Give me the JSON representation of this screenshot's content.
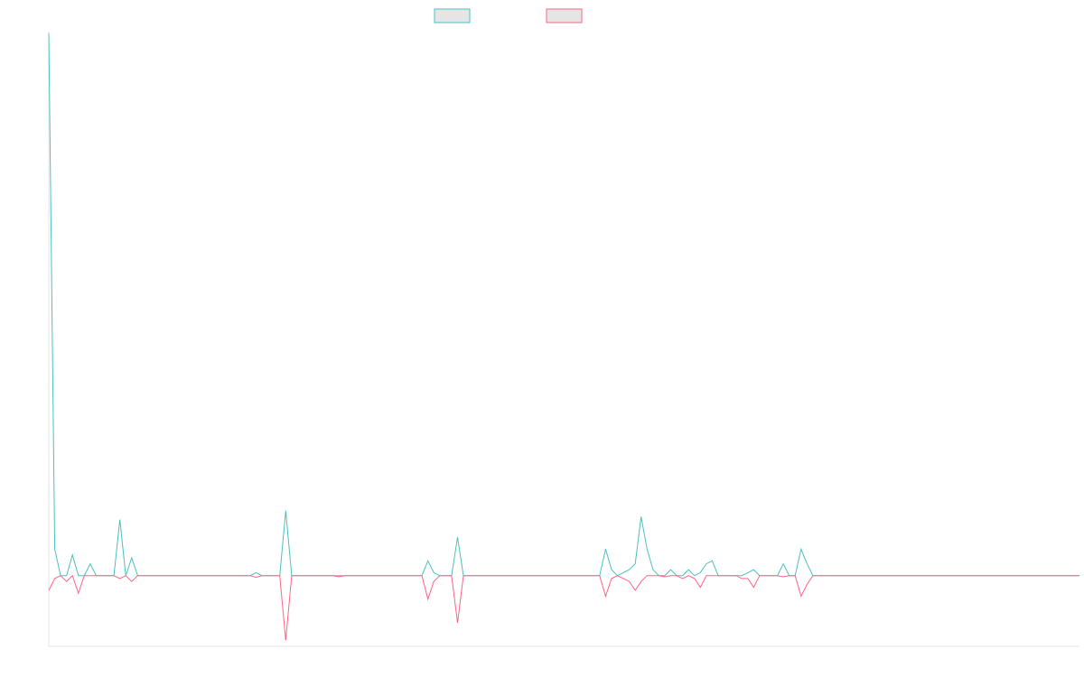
{
  "chart_data": {
    "type": "line",
    "title": "",
    "xlabel": "",
    "ylabel": "",
    "grid": false,
    "legend_position": "top-center",
    "x_count": 175,
    "ylim": [
      -12,
      92
    ],
    "series": [
      {
        "color": "#4bc0c0",
        "legend_fill": "#e5e5e5",
        "points": [
          [
            0,
            92
          ],
          [
            1,
            4.5
          ],
          [
            2,
            0
          ],
          [
            3,
            0
          ],
          [
            4,
            3.5
          ],
          [
            5,
            0
          ],
          [
            6,
            0
          ],
          [
            7,
            2
          ],
          [
            8,
            0
          ],
          [
            9,
            0
          ],
          [
            10,
            0
          ],
          [
            11,
            0
          ],
          [
            12,
            9.5
          ],
          [
            13,
            0
          ],
          [
            14,
            3
          ],
          [
            15,
            0
          ],
          [
            34,
            0
          ],
          [
            35,
            0.5
          ],
          [
            36,
            0
          ],
          [
            39,
            0
          ],
          [
            40,
            11
          ],
          [
            41,
            0
          ],
          [
            63,
            0
          ],
          [
            64,
            2.5
          ],
          [
            65,
            0.5
          ],
          [
            66,
            0
          ],
          [
            68,
            0
          ],
          [
            69,
            6.5
          ],
          [
            70,
            0
          ],
          [
            93,
            0
          ],
          [
            94,
            4.5
          ],
          [
            95,
            1
          ],
          [
            96,
            0
          ],
          [
            98,
            1
          ],
          [
            99,
            2
          ],
          [
            100,
            10
          ],
          [
            101,
            4.5
          ],
          [
            102,
            1
          ],
          [
            103,
            0
          ],
          [
            104,
            0
          ],
          [
            105,
            1
          ],
          [
            106,
            0
          ],
          [
            107,
            0
          ],
          [
            108,
            1
          ],
          [
            109,
            0
          ],
          [
            110,
            0.5
          ],
          [
            111,
            2
          ],
          [
            112,
            2.5
          ],
          [
            113,
            0
          ],
          [
            117,
            0
          ],
          [
            118,
            0.5
          ],
          [
            119,
            1
          ],
          [
            120,
            0
          ],
          [
            123,
            0
          ],
          [
            124,
            2
          ],
          [
            125,
            0
          ],
          [
            126,
            0
          ],
          [
            127,
            4.5
          ],
          [
            128,
            2
          ],
          [
            129,
            0
          ],
          [
            174,
            0
          ]
        ]
      },
      {
        "color": "#ff6384",
        "legend_fill": "#e5e5e5",
        "points": [
          [
            0,
            -2.5
          ],
          [
            1,
            -0.5
          ],
          [
            2,
            0
          ],
          [
            3,
            -1
          ],
          [
            4,
            0
          ],
          [
            5,
            -3
          ],
          [
            6,
            0
          ],
          [
            11,
            0
          ],
          [
            12,
            -0.5
          ],
          [
            13,
            0
          ],
          [
            14,
            -1
          ],
          [
            15,
            0
          ],
          [
            34,
            0
          ],
          [
            35,
            -0.3
          ],
          [
            36,
            0
          ],
          [
            39,
            0
          ],
          [
            40,
            -11
          ],
          [
            41,
            0
          ],
          [
            48,
            0
          ],
          [
            49,
            -0.2
          ],
          [
            50,
            0
          ],
          [
            63,
            0
          ],
          [
            64,
            -4
          ],
          [
            65,
            -1
          ],
          [
            66,
            0
          ],
          [
            68,
            0
          ],
          [
            69,
            -8
          ],
          [
            70,
            0
          ],
          [
            93,
            0
          ],
          [
            94,
            -3.5
          ],
          [
            95,
            -0.5
          ],
          [
            96,
            0
          ],
          [
            97,
            -0.5
          ],
          [
            98,
            -1
          ],
          [
            99,
            -2.5
          ],
          [
            100,
            -1
          ],
          [
            101,
            0
          ],
          [
            102,
            0
          ],
          [
            103,
            0
          ],
          [
            104,
            -0.2
          ],
          [
            105,
            0
          ],
          [
            106,
            0
          ],
          [
            107,
            -0.5
          ],
          [
            108,
            0
          ],
          [
            109,
            -0.5
          ],
          [
            110,
            -2
          ],
          [
            111,
            0
          ],
          [
            116,
            0
          ],
          [
            117,
            -0.5
          ],
          [
            118,
            -0.5
          ],
          [
            119,
            -2
          ],
          [
            120,
            0
          ],
          [
            123,
            0
          ],
          [
            124,
            -0.2
          ],
          [
            125,
            0
          ],
          [
            126,
            0
          ],
          [
            127,
            -3.5
          ],
          [
            128,
            -1.5
          ],
          [
            129,
            0
          ],
          [
            174,
            0
          ]
        ]
      }
    ]
  }
}
